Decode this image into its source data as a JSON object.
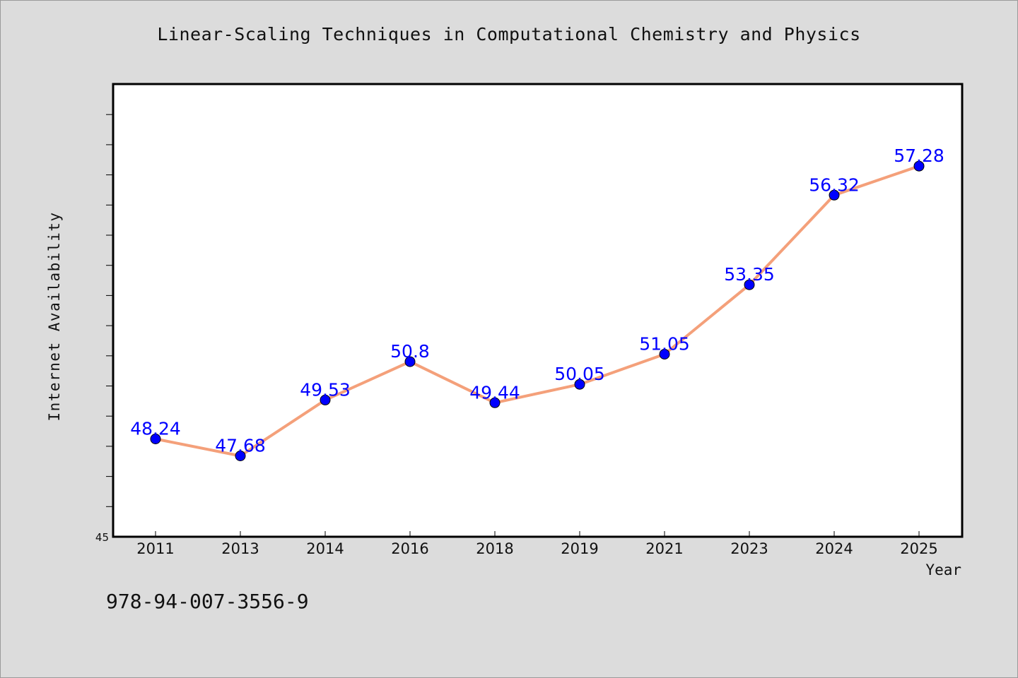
{
  "chart_data": {
    "type": "line",
    "title": "Linear-Scaling Techniques in Computational Chemistry and Physics",
    "xlabel": "Year",
    "ylabel": "Internet Availability",
    "categories": [
      "2011",
      "2013",
      "2014",
      "2016",
      "2018",
      "2019",
      "2021",
      "2023",
      "2024",
      "2025"
    ],
    "values": [
      48.24,
      47.68,
      49.53,
      50.8,
      49.44,
      50.05,
      51.05,
      53.35,
      56.32,
      57.28
    ],
    "data_labels": [
      "48.24",
      "47.68",
      "49.53",
      "50.8",
      "49.44",
      "50.05",
      "51.05",
      "53.35",
      "56.32",
      "57.28"
    ],
    "ylim": [
      45,
      60
    ],
    "y_tick_labels": [
      "45"
    ],
    "grid": false,
    "colors": {
      "line": "#f4a07a",
      "marker": "#0000ff",
      "data_label": "#0000ff",
      "background": "#dcdcdc",
      "plot_area": "#ffffff"
    }
  },
  "footer": {
    "isbn": "978-94-007-3556-9"
  }
}
